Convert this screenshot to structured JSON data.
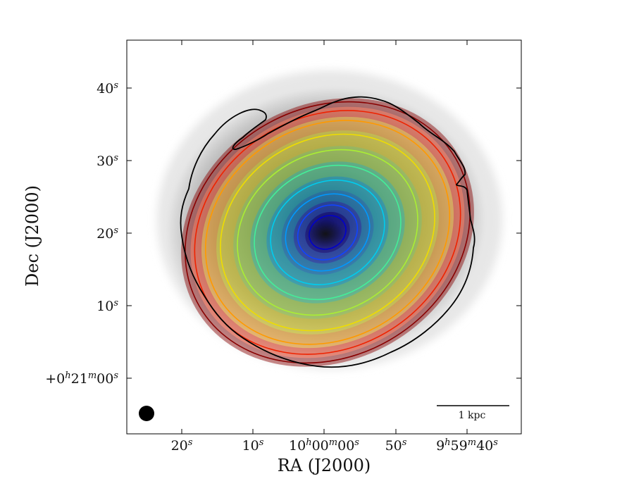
{
  "chart_data": {
    "type": "contour",
    "xlabel": "RA (J2000)",
    "ylabel": "Dec (J2000)",
    "x_ticks": [
      {
        "main": "20",
        "sup": "s"
      },
      {
        "main": "10",
        "sup": "s"
      },
      {
        "main": "10",
        "sup": "h",
        "main2": "00",
        "sup2": "m",
        "main3": "00",
        "sup3": "s"
      },
      {
        "main": "50",
        "sup": "s"
      },
      {
        "main": "9",
        "sup": "h",
        "main2": "59",
        "sup2": "m",
        "main3": "40",
        "sup3": "s"
      }
    ],
    "y_ticks": [
      {
        "main": "40",
        "sup": "s"
      },
      {
        "main": "30",
        "sup": "s"
      },
      {
        "main": "20",
        "sup": "s"
      },
      {
        "main": "10",
        "sup": "s"
      },
      {
        "main": "+0",
        "sup": "h",
        "main2": "21",
        "sup2": "m",
        "main3": "00",
        "sup3": "s"
      }
    ],
    "background": "grayscale intensity image of a galaxy",
    "model_contours": {
      "count": 10,
      "colors": [
        "#0000cc",
        "#1144ff",
        "#0099ff",
        "#00ccee",
        "#44ee99",
        "#aaee33",
        "#eedd00",
        "#ff9900",
        "#ee2200",
        "#880000"
      ]
    },
    "outer_contour_color": "#000000",
    "beam_marker": "filled black circle (lower-left)",
    "scalebar": {
      "label": "1 kpc"
    }
  }
}
